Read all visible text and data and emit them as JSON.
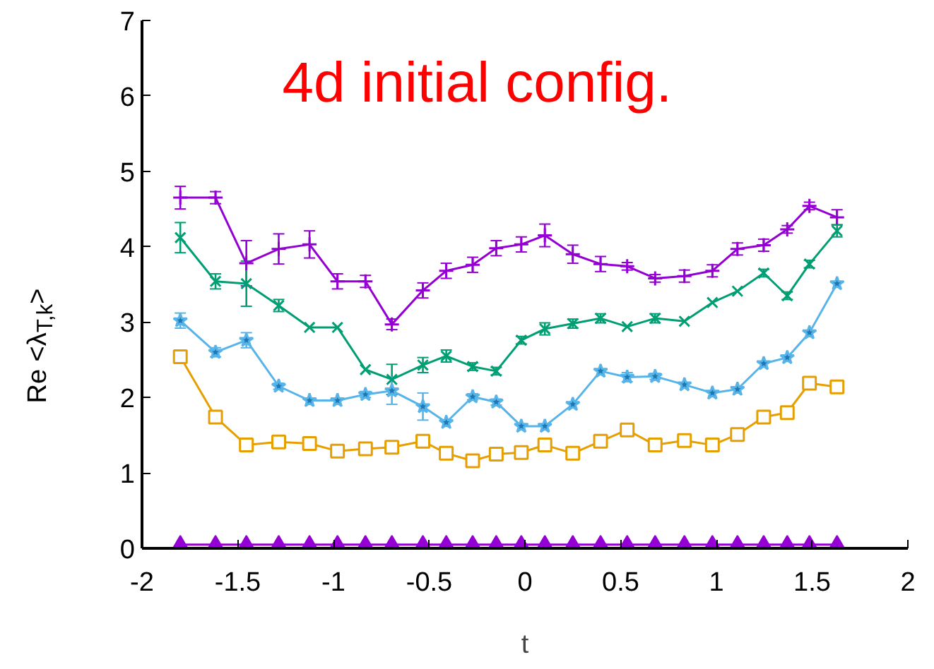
{
  "chart_data": {
    "type": "line",
    "title": "4d initial config.",
    "xlabel": "t",
    "ylabel": "Re <λ$_{T,k}$>",
    "x": [
      -1.8,
      -1.616,
      -1.455,
      -1.286,
      -1.125,
      -0.979,
      -0.833,
      -0.695,
      -0.533,
      -0.411,
      -0.273,
      -0.15,
      -0.019,
      0.104,
      0.25,
      0.395,
      0.534,
      0.68,
      0.833,
      0.979,
      1.11,
      1.247,
      1.37,
      1.486,
      1.63
    ],
    "xlim": [
      -2,
      2
    ],
    "xticks": [
      -2,
      -1.5,
      -1,
      -0.5,
      0,
      0.5,
      1,
      1.5,
      2
    ],
    "ylim": [
      0,
      7
    ],
    "yticks": [
      0,
      1,
      2,
      3,
      4,
      5,
      6,
      7
    ],
    "grid": false,
    "series": [
      {
        "color": "#9400d3",
        "marker": "cross",
        "values": [
          4.65,
          4.65,
          3.78,
          3.97,
          4.03,
          3.54,
          3.54,
          2.97,
          3.42,
          3.68,
          3.76,
          3.98,
          4.03,
          4.15,
          3.9,
          3.77,
          3.74,
          3.58,
          3.61,
          3.68,
          3.97,
          4.02,
          4.23,
          4.54,
          4.39
        ],
        "errors": [
          0.15,
          0.08,
          0.3,
          0.2,
          0.18,
          0.1,
          0.08,
          0.07,
          0.1,
          0.1,
          0.1,
          0.1,
          0.1,
          0.15,
          0.12,
          0.1,
          0.05,
          0.05,
          0.08,
          0.08,
          0.08,
          0.08,
          0.05,
          0.05,
          0.1
        ]
      },
      {
        "color": "#009e73",
        "marker": "x",
        "values": [
          4.12,
          3.54,
          3.51,
          3.22,
          2.93,
          2.93,
          2.37,
          2.24,
          2.43,
          2.55,
          2.41,
          2.35,
          2.76,
          2.91,
          2.98,
          3.05,
          2.94,
          3.05,
          3.01,
          3.26,
          3.41,
          3.65,
          3.35,
          3.77,
          4.21
        ],
        "errors": [
          0.2,
          0.1,
          0.3,
          0.08,
          null,
          null,
          null,
          0.2,
          0.1,
          0.08,
          0.05,
          0.05,
          0.05,
          0.08,
          0.06,
          0.06,
          null,
          0.06,
          null,
          null,
          null,
          0.05,
          0.05,
          0.05,
          0.08
        ]
      },
      {
        "color": "#56b4e9",
        "marker": "star",
        "values": [
          3.02,
          2.6,
          2.76,
          2.15,
          1.96,
          1.96,
          2.04,
          2.09,
          1.88,
          1.67,
          2.01,
          1.94,
          1.62,
          1.62,
          1.91,
          2.35,
          2.27,
          2.28,
          2.17,
          2.06,
          2.11,
          2.45,
          2.53,
          2.86,
          3.51
        ],
        "errors": [
          0.1,
          0.06,
          0.1,
          0.04,
          null,
          null,
          0.04,
          0.18,
          0.18,
          null,
          0.04,
          0.04,
          null,
          null,
          null,
          null,
          0.06,
          0.04,
          null,
          null,
          null,
          null,
          null,
          null,
          null
        ]
      },
      {
        "color": "#e69f00",
        "marker": "square",
        "values": [
          2.54,
          1.74,
          1.37,
          1.41,
          1.39,
          1.29,
          1.32,
          1.34,
          1.42,
          1.26,
          1.16,
          1.25,
          1.27,
          1.37,
          1.26,
          1.42,
          1.57,
          1.37,
          1.43,
          1.37,
          1.51,
          1.74,
          1.8,
          2.19,
          2.14
        ],
        "errors": [
          0.05,
          null,
          null,
          null,
          null,
          null,
          null,
          null,
          null,
          null,
          null,
          null,
          null,
          null,
          null,
          null,
          null,
          null,
          null,
          null,
          null,
          null,
          null,
          null,
          null
        ]
      },
      {
        "color": "#9400d3",
        "marker": "triangle",
        "values": [
          0.05,
          0.05,
          0.05,
          0.05,
          0.05,
          0.05,
          0.05,
          0.05,
          0.05,
          0.05,
          0.05,
          0.05,
          0.05,
          0.05,
          0.05,
          0.05,
          0.05,
          0.05,
          0.05,
          0.05,
          0.05,
          0.05,
          0.05,
          0.05,
          0.05
        ]
      }
    ]
  }
}
